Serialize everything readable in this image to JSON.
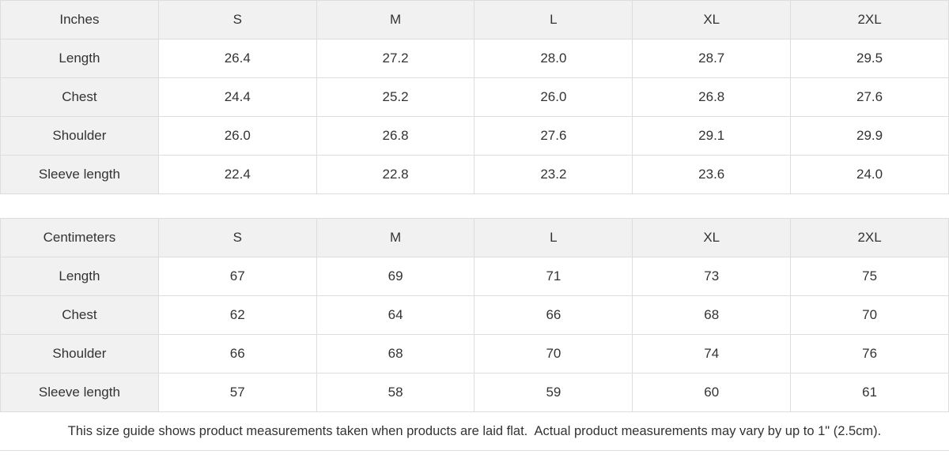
{
  "colors": {
    "header_cell_bg": "#f1f1f1",
    "data_cell_bg": "#ffffff",
    "border": "#dddddd",
    "text": "#333333"
  },
  "inches_table": {
    "unit_label": "Inches",
    "sizes": [
      "S",
      "M",
      "L",
      "XL",
      "2XL"
    ],
    "rows": [
      {
        "label": "Length",
        "values": [
          "26.4",
          "27.2",
          "28.0",
          "28.7",
          "29.5"
        ]
      },
      {
        "label": "Chest",
        "values": [
          "24.4",
          "25.2",
          "26.0",
          "26.8",
          "27.6"
        ]
      },
      {
        "label": "Shoulder",
        "values": [
          "26.0",
          "26.8",
          "27.6",
          "29.1",
          "29.9"
        ]
      },
      {
        "label": "Sleeve length",
        "values": [
          "22.4",
          "22.8",
          "23.2",
          "23.6",
          "24.0"
        ]
      }
    ]
  },
  "centimeters_table": {
    "unit_label": "Centimeters",
    "sizes": [
      "S",
      "M",
      "L",
      "XL",
      "2XL"
    ],
    "rows": [
      {
        "label": "Length",
        "values": [
          "67",
          "69",
          "71",
          "73",
          "75"
        ]
      },
      {
        "label": "Chest",
        "values": [
          "62",
          "64",
          "66",
          "68",
          "70"
        ]
      },
      {
        "label": "Shoulder",
        "values": [
          "66",
          "68",
          "70",
          "74",
          "76"
        ]
      },
      {
        "label": "Sleeve length",
        "values": [
          "57",
          "58",
          "59",
          "60",
          "61"
        ]
      }
    ]
  },
  "footer": {
    "note": "This size guide shows product measurements taken when products are laid flat.  Actual product measurements may vary by up to 1\" (2.5cm)."
  }
}
